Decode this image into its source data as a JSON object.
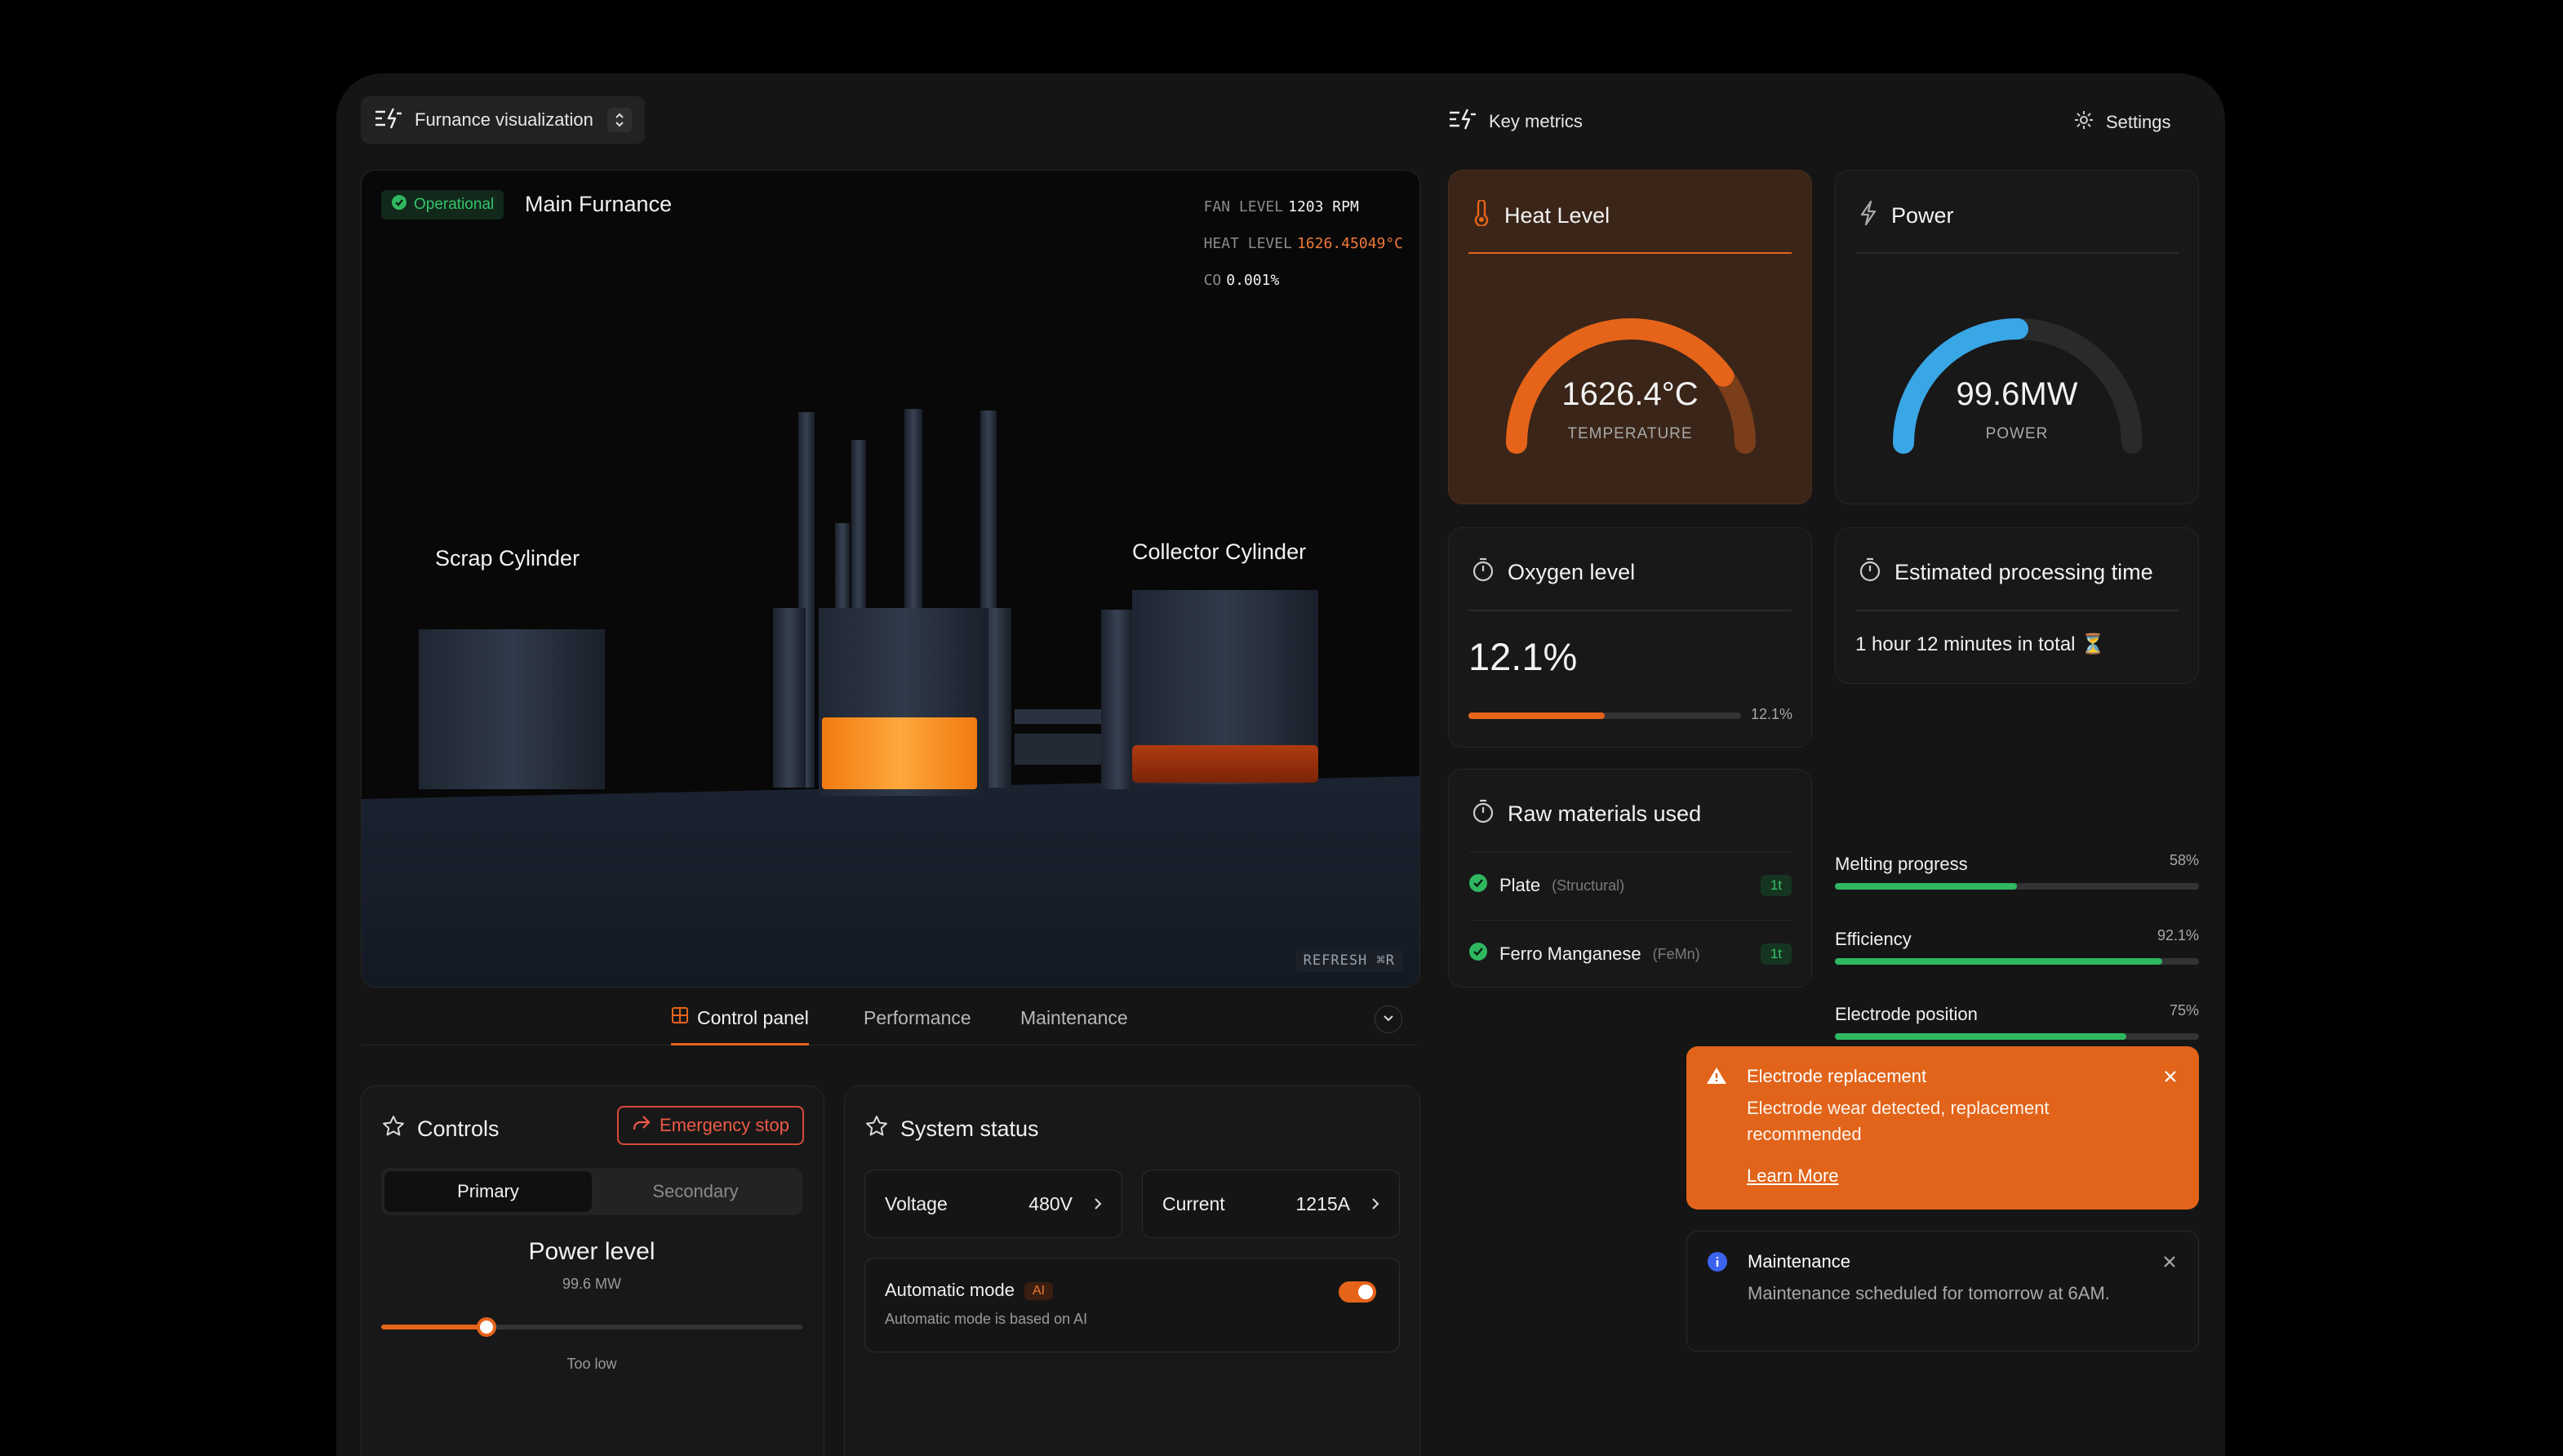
{
  "header": {
    "view_selector": "Furnance visualization",
    "key_metrics": "Key metrics",
    "settings": "Settings"
  },
  "viewport": {
    "status": "Operational",
    "title": "Main Furnance",
    "readouts": [
      {
        "label": "FAN LEVEL",
        "value": "1203 RPM"
      },
      {
        "label": "HEAT LEVEL",
        "value": "1626.45049°C"
      },
      {
        "label": "CO",
        "value": "0.001%"
      }
    ],
    "labels": {
      "scrap": "Scrap Cylinder",
      "collector": "Collector Cylinder"
    },
    "refresh": "REFRESH ⌘R"
  },
  "tabs": [
    {
      "label": "Control panel",
      "active": true
    },
    {
      "label": "Performance",
      "active": false
    },
    {
      "label": "Maintenance",
      "active": false
    }
  ],
  "controls": {
    "title": "Controls",
    "emergency": "Emergency stop",
    "segments": [
      "Primary",
      "Secondary"
    ],
    "power_title": "Power level",
    "power_value": "99.6 MW",
    "slider_fraction": 0.25,
    "note": "Too low"
  },
  "system_status": {
    "title": "System status",
    "voltage_label": "Voltage",
    "voltage": "480V",
    "current_label": "Current",
    "current": "1215A",
    "auto_title": "Automatic mode",
    "auto_badge": "AI",
    "auto_desc": "Automatic mode is based on AI",
    "auto_on": true
  },
  "heat": {
    "title": "Heat Level",
    "value": "1626.4°C",
    "label": "TEMPERATURE",
    "fraction": 0.8
  },
  "power": {
    "title": "Power",
    "value": "99.6MW",
    "label": "POWER",
    "fraction": 0.5
  },
  "oxygen": {
    "title": "Oxygen level",
    "value": "12.1%",
    "bar_label": "12.1%",
    "fraction": 0.5
  },
  "processing": {
    "title": "Estimated processing time",
    "value": "1 hour 12 minutes in total ⏳"
  },
  "materials": {
    "title": "Raw materials used",
    "items": [
      {
        "name": "Plate",
        "sub": "(Structural)",
        "qty": "1t"
      },
      {
        "name": "Ferro Manganese",
        "sub": "(FeMn)",
        "qty": "1t"
      }
    ]
  },
  "progress": [
    {
      "label": "Melting progress",
      "pct": "58%",
      "fraction": 0.5
    },
    {
      "label": "Efficiency",
      "pct": "92.1%",
      "fraction": 0.9
    },
    {
      "label": "Electrode position",
      "pct": "75%",
      "fraction": 0.8
    }
  ],
  "toasts": {
    "warn": {
      "title": "Electrode replacement",
      "body": "Electrode wear detected, replacement recommended",
      "link": "Learn More"
    },
    "info": {
      "title": "Maintenance",
      "body": "Maintenance scheduled for tomorrow at 6AM."
    }
  },
  "colors": {
    "accent": "#e5641a",
    "power": "#39a6e6",
    "success": "#2fb860",
    "danger": "#ee5a46"
  }
}
